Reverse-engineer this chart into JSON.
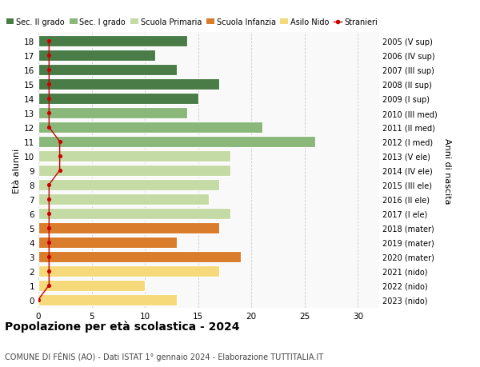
{
  "ages": [
    18,
    17,
    16,
    15,
    14,
    13,
    12,
    11,
    10,
    9,
    8,
    7,
    6,
    5,
    4,
    3,
    2,
    1,
    0
  ],
  "right_labels": [
    "2005 (V sup)",
    "2006 (IV sup)",
    "2007 (III sup)",
    "2008 (II sup)",
    "2009 (I sup)",
    "2010 (III med)",
    "2011 (II med)",
    "2012 (I med)",
    "2013 (V ele)",
    "2014 (IV ele)",
    "2015 (III ele)",
    "2016 (II ele)",
    "2017 (I ele)",
    "2018 (mater)",
    "2019 (mater)",
    "2020 (mater)",
    "2021 (nido)",
    "2022 (nido)",
    "2023 (nido)"
  ],
  "bar_values": [
    14,
    11,
    13,
    17,
    15,
    14,
    21,
    26,
    18,
    18,
    17,
    16,
    18,
    17,
    13,
    19,
    17,
    10,
    13
  ],
  "stranieri_values": [
    1,
    1,
    1,
    1,
    1,
    1,
    1,
    2,
    2,
    2,
    1,
    1,
    1,
    1,
    1,
    1,
    1,
    1,
    0
  ],
  "bar_colors": [
    "#4a7c47",
    "#4a7c47",
    "#4a7c47",
    "#4a7c47",
    "#4a7c47",
    "#8ab87a",
    "#8ab87a",
    "#8ab87a",
    "#c5dba5",
    "#c5dba5",
    "#c5dba5",
    "#c5dba5",
    "#c5dba5",
    "#d97c2b",
    "#d97c2b",
    "#d97c2b",
    "#f5d97a",
    "#f5d97a",
    "#f5d97a"
  ],
  "legend_labels": [
    "Sec. II grado",
    "Sec. I grado",
    "Scuola Primaria",
    "Scuola Infanzia",
    "Asilo Nido",
    "Stranieri"
  ],
  "legend_colors": [
    "#4a7c47",
    "#8ab87a",
    "#c5dba5",
    "#d97c2b",
    "#f5d97a",
    "#cc0000"
  ],
  "title": "Popolazione per età scolastica - 2024",
  "subtitle": "COMUNE DI FÉNIS (AO) - Dati ISTAT 1° gennaio 2024 - Elaborazione TUTTITALIA.IT",
  "ylabel": "Età alunni",
  "right_ylabel": "Anni di nascita",
  "xlabel_ticks": [
    0,
    5,
    10,
    15,
    20,
    25,
    30
  ],
  "xlim": [
    0,
    32
  ],
  "stranieri_color": "#cc0000",
  "bar_height": 0.78,
  "background_color": "#ffffff",
  "plot_background": "#f9f9f9"
}
